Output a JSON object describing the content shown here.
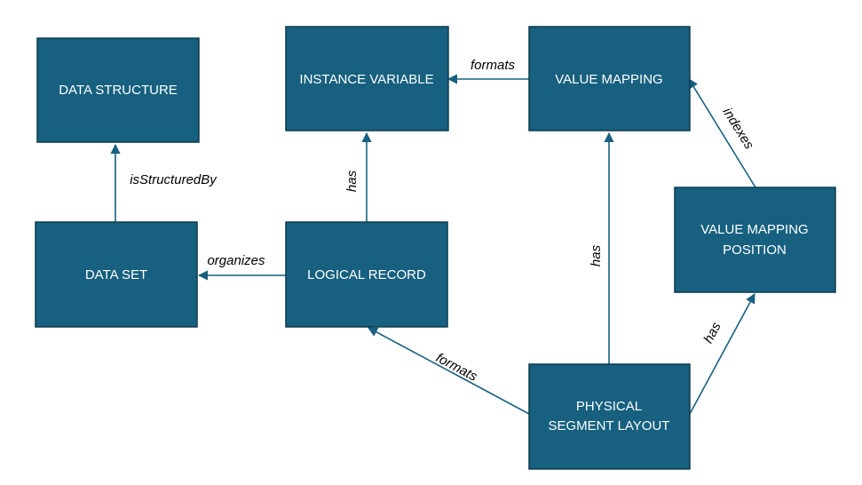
{
  "nodes": {
    "data_structure": "DATA STRUCTURE",
    "instance_variable": "INSTANCE VARIABLE",
    "value_mapping": "VALUE MAPPING",
    "data_set": "DATA SET",
    "logical_record": "LOGICAL RECORD",
    "value_mapping_position_line1": "VALUE MAPPING",
    "value_mapping_position_line2": "POSITION",
    "physical_segment_layout_line1": "PHYSICAL",
    "physical_segment_layout_line2": "SEGMENT LAYOUT"
  },
  "edges": {
    "is_structured_by": "isStructuredBy",
    "organizes": "organizes",
    "lr_has_iv": "has",
    "vm_formats_iv": "formats",
    "indexes": "indexes",
    "psl_has_vm": "has",
    "psl_formats_lr": "formats",
    "psl_has_vmp": "has"
  },
  "colors": {
    "box_fill": "#17607f",
    "box_text": "#ffffff",
    "edge": "#17607f",
    "edge_text": "#000000"
  }
}
